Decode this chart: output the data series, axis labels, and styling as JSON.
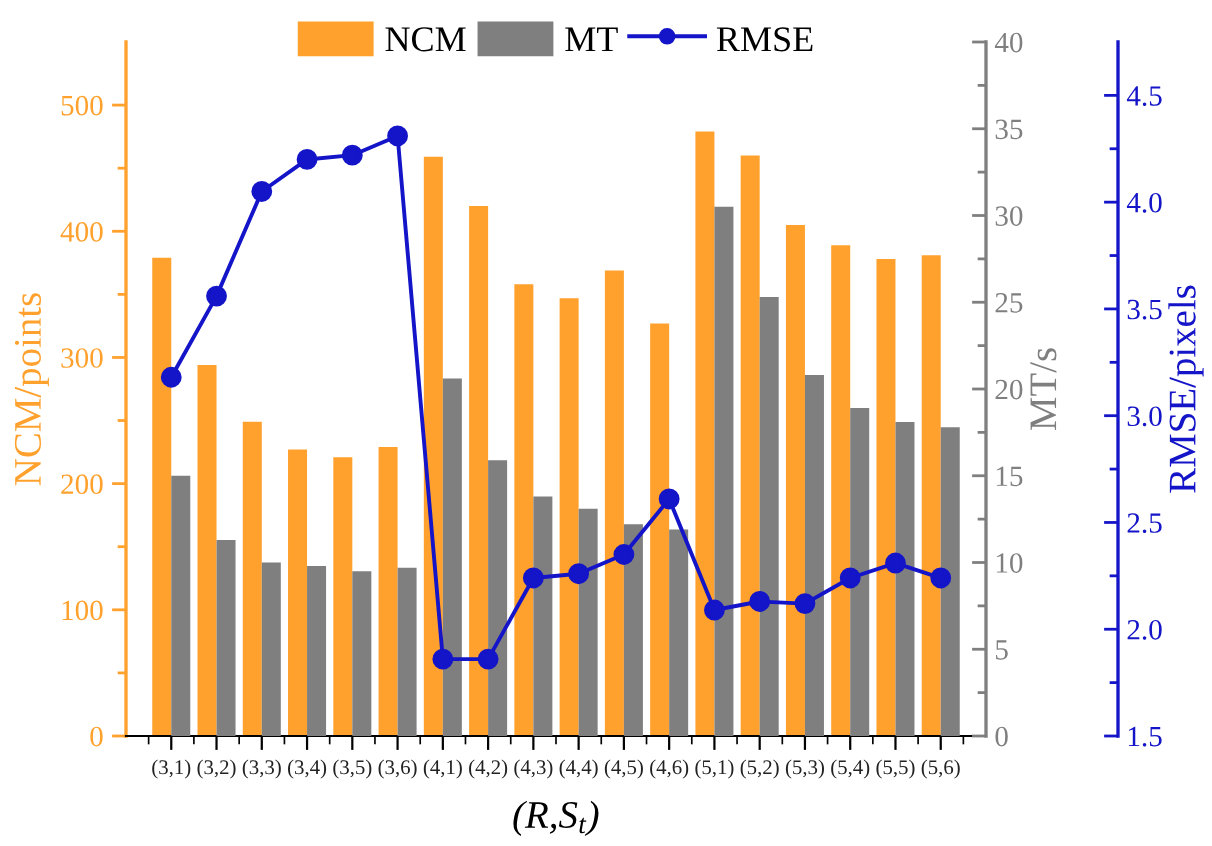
{
  "chart_data": {
    "type": "bar",
    "categories": [
      "(3,1)",
      "(3,2)",
      "(3,3)",
      "(3,4)",
      "(3,5)",
      "(3,6)",
      "(4,1)",
      "(4,2)",
      "(4,3)",
      "(4,4)",
      "(4,5)",
      "(4,6)",
      "(5,1)",
      "(5,2)",
      "(5,3)",
      "(5,4)",
      "(5,5)",
      "(5,6)"
    ],
    "xlabel": "(R,S$_{t}$)",
    "ylabel": "NCM/points",
    "y2label": "MT/s",
    "y3label": "RMSE/pixels",
    "ylim": [
      0,
      550
    ],
    "yticks": [
      0,
      100,
      200,
      300,
      400,
      500
    ],
    "y2lim": [
      0,
      40
    ],
    "y2ticks": [
      0,
      5,
      10,
      15,
      20,
      25,
      30,
      35,
      40
    ],
    "y3lim": [
      1.5,
      4.75
    ],
    "y3ticks": [
      {
        "value": 1.5,
        "label": "1.5"
      },
      {
        "value": 2,
        "label": "2.0"
      },
      {
        "value": 2.5,
        "label": "2.5"
      },
      {
        "value": 3,
        "label": "3.0"
      },
      {
        "value": 3.5,
        "label": "3.5"
      },
      {
        "value": 4,
        "label": "4.0"
      },
      {
        "value": 4.5,
        "label": "4.5"
      }
    ],
    "legend": "top",
    "marker": "circle",
    "series": [
      {
        "name": "NCM",
        "color": "#ffa12c",
        "values": [
          379,
          294,
          249,
          227,
          221,
          229,
          459,
          420,
          358,
          347,
          369,
          327,
          479,
          460,
          405,
          389,
          378,
          381
        ]
      },
      {
        "name": "MT",
        "axis": "y2",
        "color": "#7f7f7f",
        "values": [
          15.0,
          11.3,
          10.0,
          9.8,
          9.5,
          9.7,
          20.6,
          15.9,
          13.8,
          13.1,
          12.2,
          11.9,
          30.5,
          25.3,
          20.8,
          18.9,
          18.1,
          17.8
        ]
      },
      {
        "name": "RMSE",
        "type": "line",
        "axis": "y3",
        "color": "#1414c8",
        "values": [
          3.18,
          3.56,
          4.05,
          4.2,
          4.22,
          4.31,
          1.86,
          1.86,
          2.24,
          2.26,
          2.35,
          2.61,
          2.09,
          2.13,
          2.12,
          2.24,
          2.31,
          2.24
        ]
      }
    ]
  }
}
